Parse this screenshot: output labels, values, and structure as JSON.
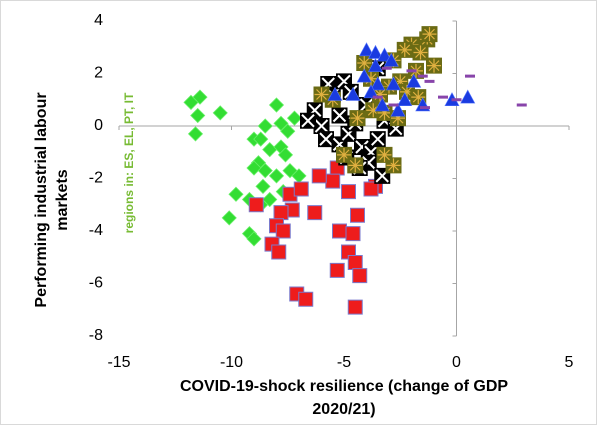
{
  "chart_data": {
    "type": "scatter",
    "x_label": [
      "COVID-19-shock resilience (change of GDP",
      "2020/21)"
    ],
    "y_label": [
      "Performing industrial labour",
      "markets"
    ],
    "annotation": "regions in: ES, EL, PT, IT",
    "annotation_color": "#77bb33",
    "xlim": [
      -15,
      5
    ],
    "xticks": [
      -15,
      -10,
      -5,
      0,
      5
    ],
    "ylim": [
      -8,
      4
    ],
    "yticks": [
      -8,
      -6,
      -4,
      -2,
      0,
      2,
      4
    ],
    "series": [
      {
        "marker": "diamond",
        "color": "#33dd33",
        "x": [
          -11.8,
          -11.4,
          -11.5,
          -10.5,
          -11.6,
          -8,
          -8.5,
          -7.8,
          -7.5,
          -7.2,
          -9,
          -8.7,
          -8.3,
          -7.8,
          -7.6,
          -8.8,
          -9,
          -8.5,
          -8,
          -7.4,
          -7,
          -8.6,
          -7.7,
          -9.8,
          -9.2,
          -8.7,
          -8.3,
          -10.1,
          -9.2,
          -9
        ],
        "y": [
          0.9,
          1.1,
          0.4,
          0.5,
          -0.3,
          0.8,
          0,
          0.1,
          -0.2,
          0.3,
          -0.5,
          -0.5,
          -0.9,
          -0.8,
          -1.1,
          -1.4,
          -1.6,
          -1.7,
          -1.9,
          -1.7,
          -1.9,
          -2.3,
          -2.5,
          -2.6,
          -2.8,
          -3,
          -2.8,
          -3.5,
          -4.1,
          -4.3
        ]
      },
      {
        "marker": "square",
        "color": "#ee1c1c",
        "x": [
          -8.9,
          -7.4,
          -7.3,
          -6.9,
          -6.3,
          -7.8,
          -8,
          -7.7,
          -8.2,
          -7.9,
          -7.1,
          -6.7,
          -5.3,
          -5.5,
          -4.8,
          -4.4,
          -5.2,
          -4.6,
          -4.8,
          -5.3,
          -4.5,
          -4.3,
          -4.5,
          -3.6,
          -3.8,
          -6.1
        ],
        "y": [
          -3,
          -2.6,
          -3.2,
          -2.4,
          -3.3,
          -3.3,
          -3.8,
          -4,
          -4.5,
          -4.8,
          -6.4,
          -6.6,
          -1.6,
          -2.1,
          -2.5,
          -3.4,
          -4,
          -4.1,
          -4.8,
          -5.5,
          -5.2,
          -5.7,
          -6.9,
          -2.3,
          -2.4,
          -1.9
        ]
      },
      {
        "marker": "square-x",
        "color": "#000000",
        "x": [
          -6,
          -5.8,
          -5.2,
          -4.8,
          -4.5,
          -4.2,
          -3.8,
          -3.5,
          -5.7,
          -5.5,
          -5,
          -4.7,
          -6.3,
          -6.6,
          -3.9,
          -4.3,
          -3.2,
          -2.7,
          -4,
          -3.5,
          -5.2,
          -4.9,
          -3.3
        ],
        "y": [
          0,
          -0.5,
          -0.7,
          -0.3,
          0.1,
          -0.8,
          -1,
          -0.5,
          1.6,
          1.2,
          1.7,
          1.3,
          0.6,
          0.2,
          -1.4,
          -1.6,
          0.2,
          -0.1,
          0.8,
          2.2,
          0.4,
          -1.2,
          -1.9
        ]
      },
      {
        "marker": "square-star",
        "color": "#6b6b14",
        "x": [
          -1.3,
          -1.2,
          -2,
          -2.3,
          -2.8,
          -1.6,
          -1,
          -1.8,
          -2.5,
          -2.2,
          -3,
          -3.4,
          -3.8,
          -4.1,
          -3.7,
          -3.2,
          -2.6,
          -5.5,
          -6,
          -4.4,
          -5,
          -4.5,
          -2.8,
          -3.2,
          -1.7
        ],
        "y": [
          3.3,
          3.5,
          3.1,
          2.9,
          2.5,
          2.8,
          2.3,
          2.1,
          1.7,
          1.3,
          1.5,
          1.2,
          1.8,
          2.4,
          0.6,
          0.5,
          0.3,
          1,
          1.2,
          0.3,
          -1.1,
          -1.5,
          -1.5,
          -1.1,
          1.1
        ]
      },
      {
        "marker": "triangle",
        "color": "#1a3be0",
        "x": [
          -4,
          -3.6,
          -3.2,
          -2.9,
          -3.6,
          -4.1,
          -3.5,
          -2.8,
          -4.6,
          -5.4,
          -3.3,
          -2.6,
          -2.3,
          -1.5,
          -0.2,
          0.5,
          -3.8,
          -1.9
        ],
        "y": [
          2.9,
          2.8,
          2.7,
          2.5,
          2.3,
          1.9,
          1.6,
          1.6,
          1.2,
          1.2,
          0.8,
          0.6,
          1,
          0.8,
          1,
          1.1,
          1.3,
          1.7
        ]
      },
      {
        "marker": "dash",
        "color": "#8844aa",
        "x": [
          -3.1,
          -2,
          -1.5,
          -1.2,
          -0.6,
          0,
          0.6,
          2.9,
          -2.8,
          -3.5,
          -1.4
        ],
        "y": [
          2.2,
          2.1,
          1.9,
          1.7,
          1.1,
          1,
          1.9,
          0.8,
          0.8,
          1.1,
          0.7
        ]
      }
    ]
  }
}
